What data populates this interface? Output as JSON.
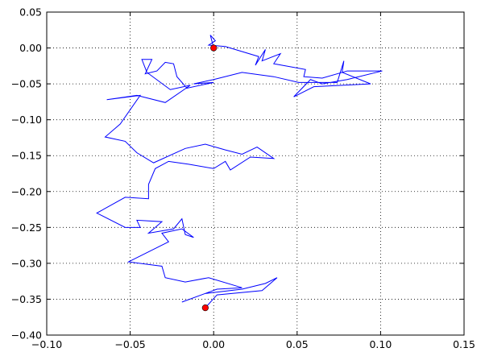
{
  "chart_data": {
    "type": "line",
    "xlim": [
      -0.1,
      0.15
    ],
    "xticks": [
      {
        "value": -0.1,
        "label": "−0.10"
      },
      {
        "value": -0.05,
        "label": "−0.05"
      },
      {
        "value": 0.0,
        "label": "0.00"
      },
      {
        "value": 0.05,
        "label": "0.05"
      },
      {
        "value": 0.1,
        "label": "0.10"
      },
      {
        "value": 0.15,
        "label": "0.15"
      }
    ],
    "ylim": [
      -0.4,
      0.05
    ],
    "yticks": [
      {
        "value": -0.4,
        "label": "−0.40"
      },
      {
        "value": -0.35,
        "label": "−0.35"
      },
      {
        "value": -0.3,
        "label": "−0.30"
      },
      {
        "value": -0.25,
        "label": "−0.25"
      },
      {
        "value": -0.2,
        "label": "−0.20"
      },
      {
        "value": -0.15,
        "label": "−0.15"
      },
      {
        "value": -0.1,
        "label": "−0.10"
      },
      {
        "value": -0.05,
        "label": "−0.05"
      },
      {
        "value": 0.0,
        "label": "0.00"
      },
      {
        "value": 0.05,
        "label": "0.05"
      }
    ],
    "grid": true,
    "series": [
      {
        "color": "#0000ff",
        "style": "line",
        "x": [
          0,
          -0.002,
          0.001,
          -0.003,
          0.007,
          0.027,
          0.025,
          0.031,
          0.029,
          0.04,
          0.036,
          0.055,
          0.054,
          0.065,
          0.08,
          0.101,
          0.08,
          0.065,
          0.058,
          0.048,
          0.06,
          0.094,
          0.077,
          0.078,
          0.074,
          0.051,
          0.036,
          0.017,
          0,
          -0.012,
          0,
          -0.016,
          -0.022,
          -0.024,
          -0.029,
          -0.034,
          -0.041,
          -0.037,
          -0.043,
          -0.04,
          -0.026,
          -0.014,
          -0.029,
          -0.046,
          -0.064,
          -0.044,
          -0.056,
          -0.065,
          -0.053,
          -0.046,
          -0.036,
          -0.017,
          -0.005,
          0.007,
          0.017,
          0.026,
          0.036,
          0.022,
          0.01,
          0.007,
          0,
          -0.015,
          -0.027,
          -0.035,
          -0.039,
          -0.039,
          -0.053,
          -0.07,
          -0.053,
          -0.044,
          -0.046,
          -0.031,
          -0.039,
          -0.024,
          -0.019,
          -0.017,
          -0.012,
          -0.019,
          -0.031,
          -0.027,
          -0.051,
          -0.031,
          -0.029,
          -0.017,
          -0.003,
          0.017,
          0.002,
          -0.019,
          -0.005,
          0.017,
          0.031,
          0.038,
          0.029,
          0.002,
          -0.005
        ],
        "values": [
          0,
          0.018,
          0.01,
          0.004,
          0.002,
          -0.012,
          -0.024,
          -0.002,
          -0.018,
          -0.008,
          -0.022,
          -0.03,
          -0.04,
          -0.042,
          -0.032,
          -0.032,
          -0.044,
          -0.05,
          -0.044,
          -0.068,
          -0.054,
          -0.05,
          -0.034,
          -0.018,
          -0.048,
          -0.048,
          -0.04,
          -0.034,
          -0.044,
          -0.05,
          -0.048,
          -0.056,
          -0.04,
          -0.022,
          -0.02,
          -0.032,
          -0.036,
          -0.016,
          -0.016,
          -0.034,
          -0.058,
          -0.052,
          -0.076,
          -0.066,
          -0.072,
          -0.066,
          -0.106,
          -0.124,
          -0.13,
          -0.146,
          -0.16,
          -0.14,
          -0.134,
          -0.142,
          -0.148,
          -0.138,
          -0.154,
          -0.152,
          -0.17,
          -0.158,
          -0.168,
          -0.162,
          -0.158,
          -0.168,
          -0.19,
          -0.21,
          -0.208,
          -0.23,
          -0.25,
          -0.25,
          -0.24,
          -0.242,
          -0.258,
          -0.252,
          -0.238,
          -0.26,
          -0.264,
          -0.252,
          -0.258,
          -0.27,
          -0.298,
          -0.304,
          -0.32,
          -0.326,
          -0.32,
          -0.334,
          -0.336,
          -0.354,
          -0.342,
          -0.336,
          -0.328,
          -0.32,
          -0.338,
          -0.344,
          -0.362
        ]
      },
      {
        "color": "#ff0000",
        "style": "marker",
        "x": [
          0,
          -0.005
        ],
        "values": [
          0,
          -0.362
        ]
      }
    ]
  }
}
